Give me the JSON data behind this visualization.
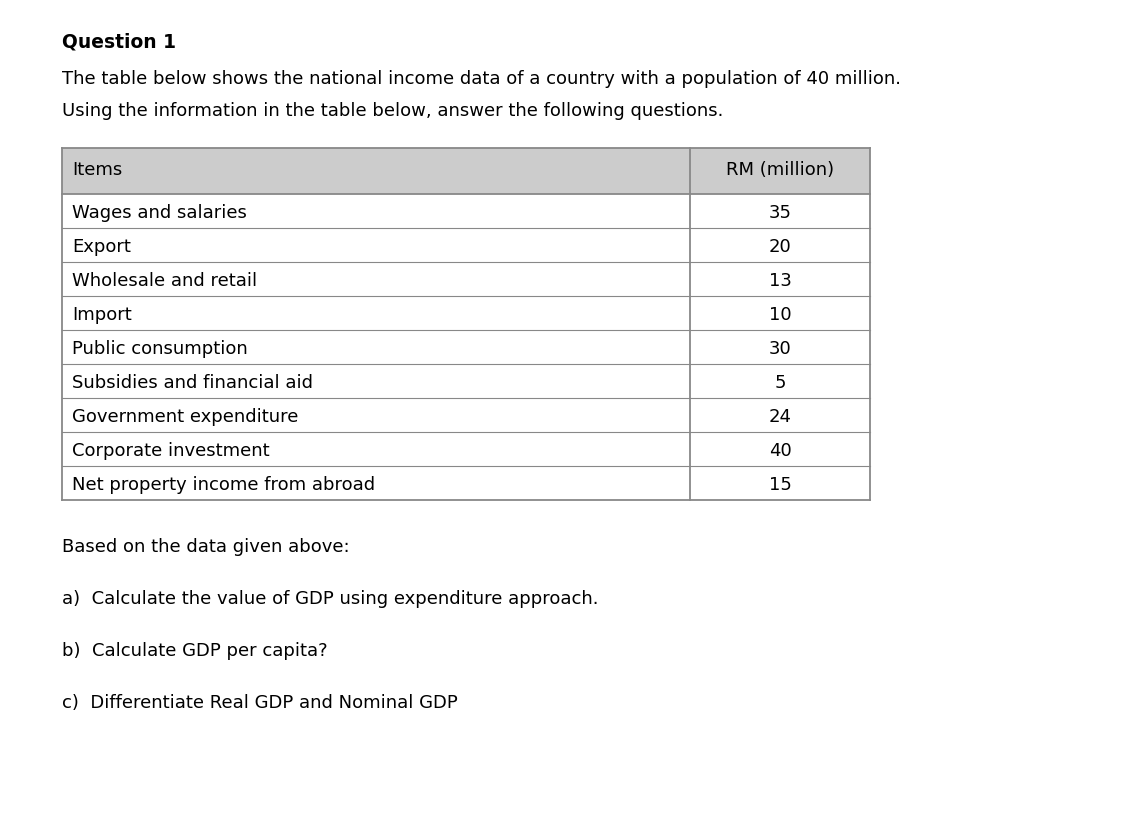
{
  "title": "Question 1",
  "intro_line1": "The table below shows the national income data of a country with a population of 40 million.",
  "intro_line2": "Using the information in the table below, answer the following questions.",
  "col1_header": "Items",
  "col2_header": "RM (million)",
  "rows": [
    [
      "Wages and salaries",
      "35"
    ],
    [
      "Export",
      "20"
    ],
    [
      "Wholesale and retail",
      "13"
    ],
    [
      "Import",
      "10"
    ],
    [
      "Public consumption",
      "30"
    ],
    [
      "Subsidies and financial aid",
      "5"
    ],
    [
      "Government expenditure",
      "24"
    ],
    [
      "Corporate investment",
      "40"
    ],
    [
      "Net property income from abroad",
      "15"
    ]
  ],
  "footer_intro": "Based on the data given above:",
  "question_a": "a)  Calculate the value of GDP using expenditure approach.",
  "question_b": "b)  Calculate GDP per capita?",
  "question_c": "c)  Differentiate Real GDP and Nominal GDP",
  "header_bg": "#cccccc",
  "border_color": "#888888",
  "text_color": "#000000",
  "bg_color": "#ffffff",
  "title_fontsize": 13.5,
  "body_fontsize": 13.0,
  "fig_width": 11.25,
  "fig_height": 8.4,
  "dpi": 100
}
